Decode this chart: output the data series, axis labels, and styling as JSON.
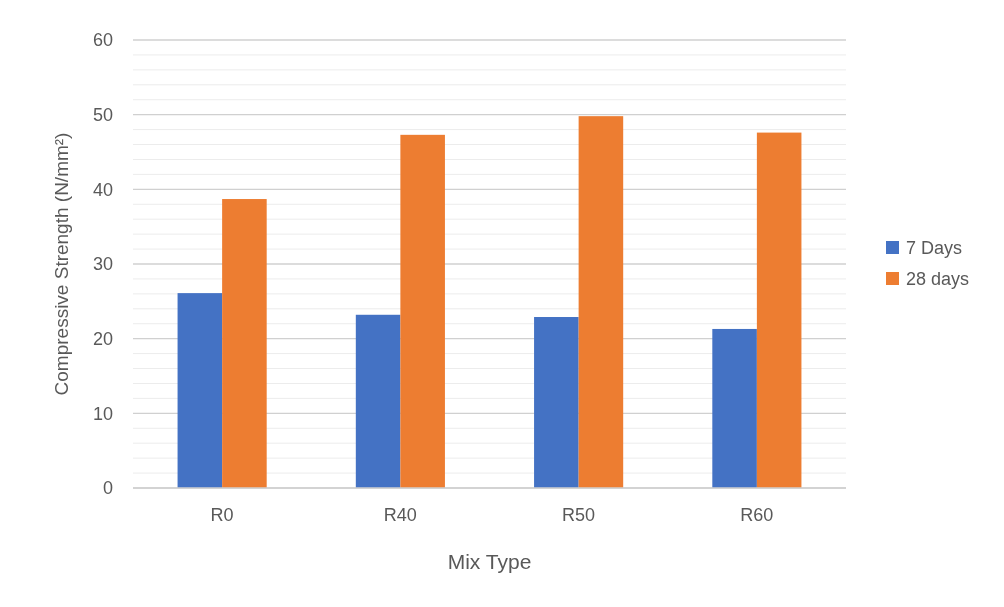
{
  "chart_data": {
    "type": "bar",
    "xlabel": "Mix Type",
    "ylabel": "Compressive Strength (N/mm²)",
    "categories": [
      "R0",
      "R40",
      "R50",
      "R60"
    ],
    "series": [
      {
        "name": "7 Days",
        "color": "#4472c4",
        "values": [
          26.1,
          23.2,
          22.9,
          21.3
        ]
      },
      {
        "name": "28 days",
        "color": "#ed7d31",
        "values": [
          38.7,
          47.3,
          49.8,
          47.6
        ]
      }
    ],
    "ylim": [
      0,
      60
    ],
    "yticks": [
      0,
      10,
      20,
      30,
      40,
      50,
      60
    ],
    "grid": "y",
    "legend": "right"
  }
}
